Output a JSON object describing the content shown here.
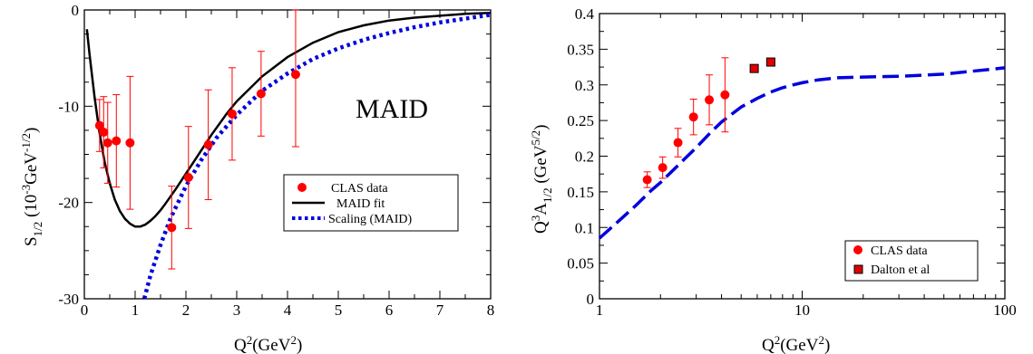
{
  "chart_data": [
    {
      "type": "scatter",
      "xlim": [
        0,
        8
      ],
      "ylim": [
        -30,
        0
      ],
      "xticks": [
        "0",
        "1",
        "2",
        "3",
        "4",
        "5",
        "6",
        "7",
        "8"
      ],
      "yticks": [
        "0",
        "-10",
        "-20",
        "-30"
      ],
      "xlabel": {
        "base": "Q",
        "sup": "2",
        "rest": "(GeV",
        "sup2": "2",
        "end": ")"
      },
      "ylabel": {
        "base": "S",
        "sub": "1/2",
        "rest": " (10",
        "sup": "-3",
        "mid": "GeV",
        "sup2": "-1/2",
        "end": ")"
      },
      "annotation": "MAID",
      "legend_position": "center-right",
      "colors": {
        "data": "#ff0000",
        "fit": "#000000",
        "scaling": "#0000dd"
      },
      "series": [
        {
          "name": "CLAS data",
          "kind": "points",
          "x": [
            0.3,
            0.38,
            0.46,
            0.63,
            0.9,
            1.72,
            2.05,
            2.44,
            2.91,
            3.48,
            4.16
          ],
          "y": [
            -12.0,
            -12.7,
            -13.8,
            -13.6,
            -13.8,
            -22.6,
            -17.4,
            -14.0,
            -10.8,
            -8.7,
            -6.7
          ],
          "err": [
            2.7,
            3.7,
            4.2,
            4.8,
            6.9,
            4.3,
            5.3,
            5.7,
            4.8,
            4.4,
            7.5
          ]
        },
        {
          "name": "MAID fit",
          "kind": "solid",
          "x": [
            0.05,
            0.1,
            0.2,
            0.3,
            0.4,
            0.5,
            0.6,
            0.7,
            0.8,
            0.9,
            1.0,
            1.1,
            1.2,
            1.3,
            1.4,
            1.5,
            1.6,
            1.8,
            2.0,
            2.2,
            2.5,
            2.8,
            3.0,
            3.5,
            4.0,
            4.5,
            5.0,
            5.5,
            6.0,
            6.5,
            7.0,
            7.5,
            8.0
          ],
          "y": [
            -2.0,
            -4.5,
            -9.0,
            -12.8,
            -15.8,
            -18.0,
            -19.7,
            -20.9,
            -21.7,
            -22.2,
            -22.5,
            -22.5,
            -22.3,
            -21.9,
            -21.4,
            -20.8,
            -20.1,
            -18.6,
            -17.0,
            -15.4,
            -13.0,
            -10.8,
            -9.5,
            -6.9,
            -4.9,
            -3.4,
            -2.3,
            -1.6,
            -1.1,
            -0.8,
            -0.6,
            -0.4,
            -0.3
          ]
        },
        {
          "name": "Scaling (MAID)",
          "kind": "dotted",
          "x": [
            1.18,
            1.3,
            1.5,
            1.7,
            2.0,
            2.3,
            2.6,
            3.0,
            3.5,
            4.0,
            4.5,
            5.0,
            5.5,
            6.0,
            6.5,
            7.0,
            7.5,
            8.0
          ],
          "y": [
            -30.0,
            -27.6,
            -24.4,
            -21.6,
            -18.3,
            -15.6,
            -13.3,
            -10.9,
            -8.4,
            -6.6,
            -5.1,
            -4.0,
            -3.1,
            -2.4,
            -1.8,
            -1.3,
            -0.9,
            -0.5
          ]
        }
      ]
    },
    {
      "type": "scatter",
      "xscale": "log",
      "xlim": [
        1,
        100
      ],
      "ylim": [
        0,
        0.4
      ],
      "xticks": [
        "1",
        "10",
        "100"
      ],
      "yticks": [
        "0",
        "0.05",
        "0.1",
        "0.15",
        "0.2",
        "0.25",
        "0.3",
        "0.35",
        "0.4"
      ],
      "xlabel": {
        "base": "Q",
        "sup": "2",
        "rest": "(GeV",
        "sup2": "2",
        "end": ")"
      },
      "ylabel": {
        "base": "Q",
        "sup": "3",
        "mid": "A",
        "sub": "1/2",
        "rest": " (GeV",
        "sup2": "5/2",
        "end": ")"
      },
      "legend_position": "bottom-right",
      "colors": {
        "data": "#ff0000",
        "dalton": "#dd0000",
        "curve": "#0000dd"
      },
      "series": [
        {
          "name": "CLAS data",
          "kind": "points",
          "x": [
            1.72,
            2.05,
            2.44,
            2.91,
            3.48,
            4.16
          ],
          "y": [
            0.167,
            0.184,
            0.219,
            0.255,
            0.279,
            0.286
          ],
          "err": [
            0.011,
            0.015,
            0.02,
            0.025,
            0.035,
            0.052
          ]
        },
        {
          "name": "Dalton et al",
          "kind": "squares",
          "x": [
            5.8,
            7.0
          ],
          "y": [
            0.323,
            0.332
          ],
          "err": [
            0.004,
            0.005
          ]
        },
        {
          "name": "",
          "kind": "dashed",
          "x": [
            1.0,
            1.2,
            1.5,
            1.8,
            2.0,
            2.5,
            3.0,
            3.5,
            4.0,
            5.0,
            6.0,
            7.0,
            8.0,
            9.0,
            10,
            12,
            15,
            20,
            30,
            50,
            100
          ],
          "y": [
            0.085,
            0.105,
            0.13,
            0.152,
            0.163,
            0.19,
            0.212,
            0.232,
            0.248,
            0.269,
            0.281,
            0.29,
            0.296,
            0.3,
            0.303,
            0.307,
            0.31,
            0.311,
            0.312,
            0.315,
            0.324
          ]
        }
      ]
    }
  ]
}
